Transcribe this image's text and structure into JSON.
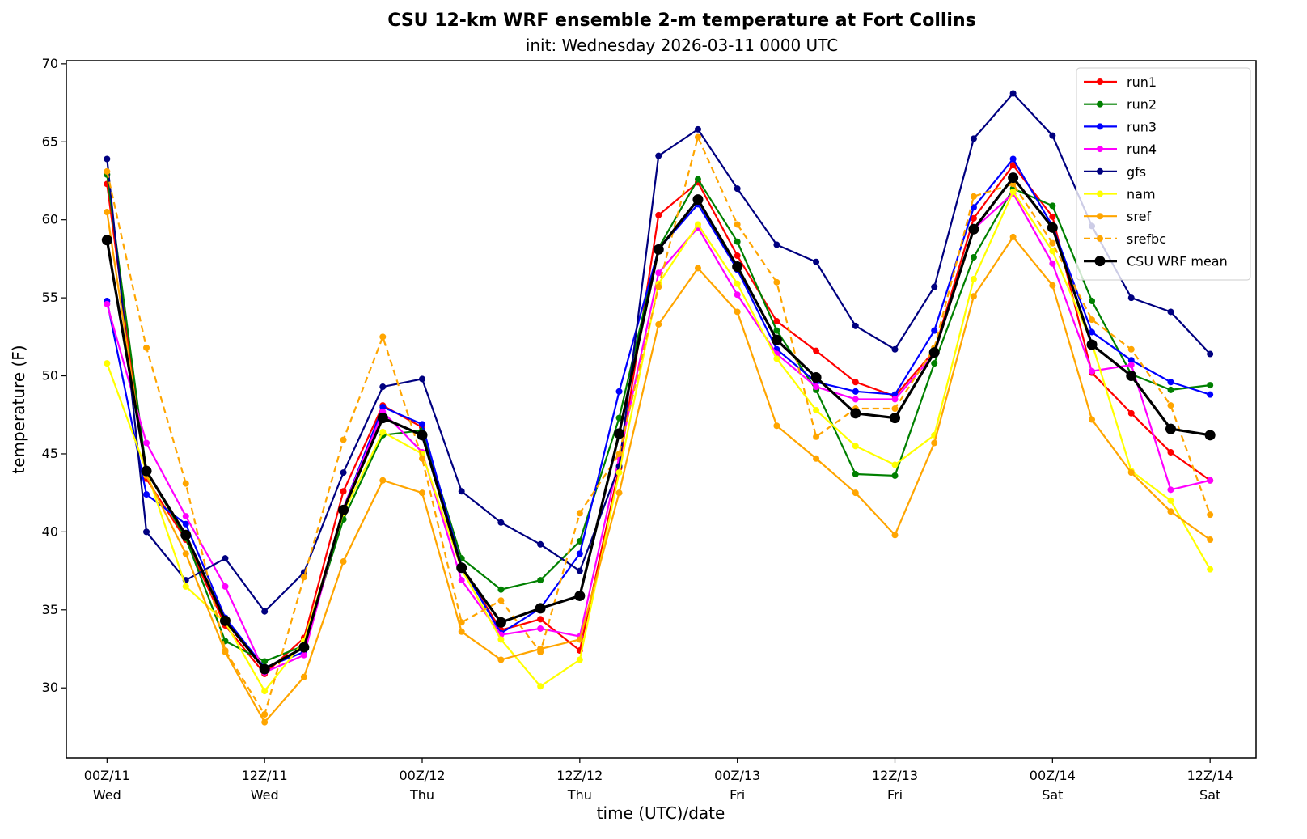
{
  "chart_data": {
    "type": "line",
    "title": "CSU 12-km WRF ensemble 2-m temperature at Fort Collins",
    "subtitle": "init: Wednesday 2026-03-11 0000 UTC",
    "xlabel": "time (UTC)/date",
    "ylabel": "temperature (F)",
    "ylim": [
      25.5,
      70.2
    ],
    "yticks": [
      30,
      35,
      40,
      45,
      50,
      55,
      60,
      65,
      70
    ],
    "x_hours": [
      0,
      3,
      6,
      9,
      12,
      15,
      18,
      21,
      24,
      27,
      30,
      33,
      36,
      39,
      42,
      45,
      48,
      51,
      54,
      57,
      60,
      63,
      66,
      69,
      72,
      75,
      78,
      81,
      84
    ],
    "xlim_hours": [
      -3.1,
      87.5
    ],
    "xticks": [
      {
        "hour": 0,
        "line1": "00Z/11",
        "line2": "Wed"
      },
      {
        "hour": 12,
        "line1": "12Z/11",
        "line2": "Wed"
      },
      {
        "hour": 24,
        "line1": "00Z/12",
        "line2": "Thu"
      },
      {
        "hour": 36,
        "line1": "12Z/12",
        "line2": "Thu"
      },
      {
        "hour": 48,
        "line1": "00Z/13",
        "line2": "Fri"
      },
      {
        "hour": 60,
        "line1": "12Z/13",
        "line2": "Fri"
      },
      {
        "hour": 72,
        "line1": "00Z/14",
        "line2": "Sat"
      },
      {
        "hour": 84,
        "line1": "12Z/14",
        "line2": "Sat"
      }
    ],
    "grid": false,
    "legend_position": "top-right",
    "series": [
      {
        "name": "run1",
        "color": "#ff0000",
        "dashed": false,
        "mean": false,
        "values": [
          62.3,
          43.4,
          39.5,
          34.0,
          30.9,
          33.2,
          42.6,
          48.1,
          46.7,
          37.8,
          33.7,
          34.4,
          32.4,
          44.1,
          60.3,
          62.4,
          57.7,
          53.5,
          51.6,
          49.6,
          48.7,
          51.6,
          60.1,
          63.5,
          60.2,
          50.2,
          47.6,
          45.1,
          43.3
        ]
      },
      {
        "name": "run2",
        "color": "#008000",
        "dashed": false,
        "mean": false,
        "values": [
          62.9,
          43.9,
          39.6,
          33.0,
          31.7,
          32.7,
          40.8,
          46.2,
          46.5,
          38.3,
          36.3,
          36.9,
          39.4,
          47.3,
          58.2,
          62.6,
          58.6,
          52.9,
          49.1,
          43.7,
          43.6,
          50.8,
          57.6,
          62.0,
          60.9,
          54.8,
          50.1,
          49.1,
          49.4
        ]
      },
      {
        "name": "run3",
        "color": "#0000ff",
        "dashed": false,
        "mean": false,
        "values": [
          54.8,
          42.4,
          40.5,
          34.5,
          31.3,
          32.3,
          41.5,
          48.0,
          46.9,
          37.8,
          33.5,
          35.1,
          38.6,
          49.0,
          58.1,
          61.0,
          56.8,
          51.7,
          49.6,
          49.0,
          48.8,
          52.9,
          60.8,
          63.9,
          59.6,
          52.8,
          51.0,
          49.6,
          48.8
        ]
      },
      {
        "name": "run4",
        "color": "#ff00ff",
        "dashed": false,
        "mean": false,
        "values": [
          54.6,
          45.7,
          41.0,
          36.5,
          31.0,
          32.1,
          41.5,
          47.7,
          45.1,
          36.9,
          33.4,
          33.8,
          33.3,
          44.8,
          56.6,
          59.5,
          55.2,
          51.4,
          49.3,
          48.5,
          48.5,
          51.4,
          59.4,
          61.7,
          57.2,
          50.3,
          50.7,
          42.7,
          43.3
        ]
      },
      {
        "name": "gfs",
        "color": "#000080",
        "dashed": false,
        "mean": false,
        "values": [
          63.9,
          40.0,
          36.9,
          38.3,
          34.9,
          37.4,
          43.8,
          49.3,
          49.8,
          42.6,
          40.6,
          39.2,
          37.5,
          44.2,
          64.1,
          65.8,
          62.0,
          58.4,
          57.3,
          53.2,
          51.7,
          55.7,
          65.2,
          68.1,
          65.4,
          59.6,
          55.0,
          54.1,
          51.4
        ]
      },
      {
        "name": "nam",
        "color": "#ffff00",
        "dashed": false,
        "mean": false,
        "values": [
          50.8,
          43.9,
          36.5,
          34.2,
          29.8,
          33.0,
          41.2,
          46.4,
          45.0,
          37.6,
          33.1,
          30.1,
          31.8,
          43.8,
          55.9,
          59.7,
          55.9,
          51.1,
          47.8,
          45.5,
          44.3,
          46.2,
          56.2,
          61.8,
          58.0,
          52.1,
          43.9,
          42.0,
          37.6
        ]
      },
      {
        "name": "sref",
        "color": "#ffa500",
        "dashed": false,
        "mean": false,
        "values": [
          60.5,
          43.6,
          38.6,
          32.3,
          27.8,
          30.7,
          38.1,
          43.3,
          42.5,
          33.6,
          31.8,
          32.5,
          33.1,
          42.5,
          53.3,
          56.9,
          54.1,
          46.8,
          44.7,
          42.5,
          39.8,
          45.7,
          55.1,
          58.9,
          55.8,
          47.2,
          43.8,
          41.3,
          39.5
        ]
      },
      {
        "name": "srefbc",
        "color": "#ffa500",
        "dashed": true,
        "mean": false,
        "values": [
          63.1,
          51.8,
          43.1,
          32.4,
          28.3,
          37.1,
          45.9,
          52.5,
          44.7,
          34.2,
          35.6,
          32.3,
          41.2,
          45.0,
          55.7,
          65.3,
          59.7,
          56.0,
          46.1,
          47.9,
          47.9,
          51.8,
          61.5,
          62.3,
          58.5,
          53.6,
          51.7,
          48.1,
          41.1
        ]
      },
      {
        "name": "CSU WRF mean",
        "color": "#000000",
        "dashed": false,
        "mean": true,
        "values": [
          58.7,
          43.9,
          39.8,
          34.3,
          31.2,
          32.6,
          41.4,
          47.3,
          46.2,
          37.7,
          34.2,
          35.1,
          35.9,
          46.3,
          58.1,
          61.3,
          57.0,
          52.3,
          49.9,
          47.6,
          47.3,
          51.5,
          59.4,
          62.7,
          59.5,
          52.0,
          50.0,
          46.6,
          46.2
        ]
      }
    ]
  }
}
